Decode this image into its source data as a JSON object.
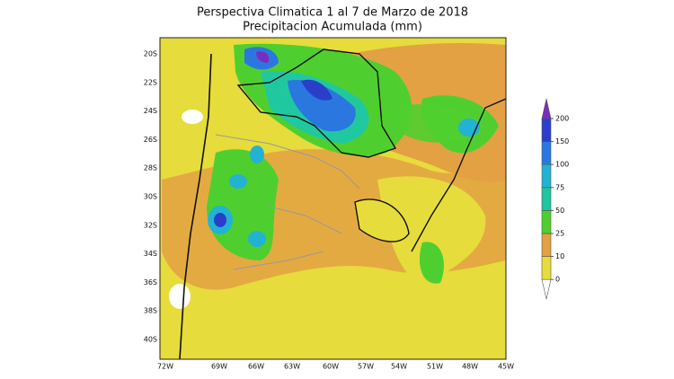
{
  "header": {
    "title": "Perspectiva Climatica 1 al 7 de Marzo de 2018",
    "subtitle": "Precipitacion Acumulada (mm)"
  },
  "map": {
    "lat_labels": [
      "20S",
      "22S",
      "24S",
      "26S",
      "28S",
      "30S",
      "32S",
      "34S",
      "36S",
      "38S",
      "40S"
    ],
    "lon_labels": [
      "72W",
      "69W",
      "66W",
      "63W",
      "60W",
      "57W",
      "54W",
      "51W",
      "48W",
      "45W"
    ]
  },
  "colorbar": {
    "ticks": [
      0,
      10,
      25,
      50,
      75,
      100,
      150,
      200
    ],
    "colors": [
      "#ffffff",
      "#e6dc3c",
      "#e3a143",
      "#4fcf2f",
      "#1ec79d",
      "#22b2d3",
      "#2a78df",
      "#2a3ec9",
      "#7a2cbf"
    ]
  }
}
